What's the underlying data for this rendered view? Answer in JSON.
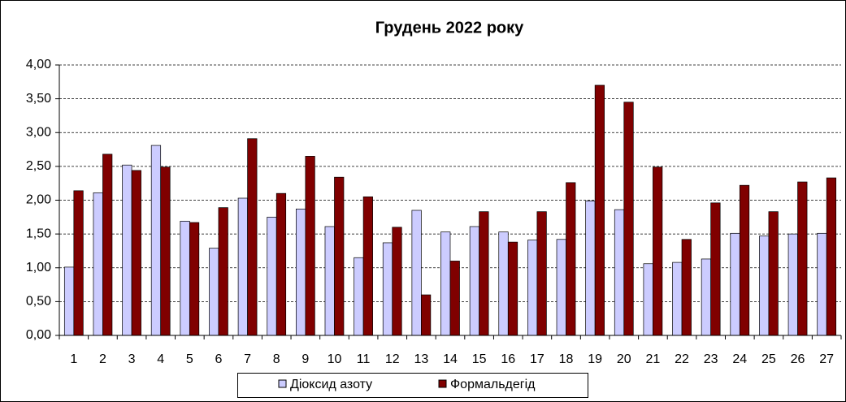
{
  "chart_data": {
    "type": "bar",
    "title": "Грудень 2022 року",
    "categories": [
      "1",
      "2",
      "3",
      "4",
      "5",
      "6",
      "7",
      "8",
      "9",
      "10",
      "11",
      "12",
      "13",
      "14",
      "15",
      "16",
      "17",
      "18",
      "19",
      "20",
      "21",
      "22",
      "23",
      "24",
      "25",
      "26",
      "27"
    ],
    "series": [
      {
        "name": "Діоксид азоту",
        "color": "#ccccff",
        "values": [
          1.01,
          2.11,
          2.52,
          2.81,
          1.69,
          1.29,
          2.03,
          1.75,
          1.87,
          1.61,
          1.15,
          1.37,
          1.85,
          1.53,
          1.61,
          1.53,
          1.41,
          1.42,
          1.99,
          1.86,
          1.06,
          1.08,
          1.13,
          1.51,
          1.47,
          1.5,
          1.51
        ]
      },
      {
        "name": "Формальдегід",
        "color": "#800000",
        "values": [
          2.14,
          2.68,
          2.44,
          2.49,
          1.67,
          1.89,
          2.91,
          2.1,
          2.65,
          2.34,
          2.05,
          1.6,
          0.6,
          1.1,
          1.83,
          1.38,
          1.83,
          2.26,
          3.7,
          3.45,
          2.49,
          1.42,
          1.96,
          2.22,
          1.83,
          2.27,
          2.33
        ]
      }
    ],
    "ylim": [
      0,
      4
    ],
    "yticks": [
      {
        "value": 0,
        "label": "0,00"
      },
      {
        "value": 0.5,
        "label": "0,50"
      },
      {
        "value": 1,
        "label": "1,00"
      },
      {
        "value": 1.5,
        "label": "1,50"
      },
      {
        "value": 2,
        "label": "2,00"
      },
      {
        "value": 2.5,
        "label": "2,50"
      },
      {
        "value": 3,
        "label": "3,00"
      },
      {
        "value": 3.5,
        "label": "3,50"
      },
      {
        "value": 4,
        "label": "4,00"
      }
    ],
    "grid": true
  }
}
